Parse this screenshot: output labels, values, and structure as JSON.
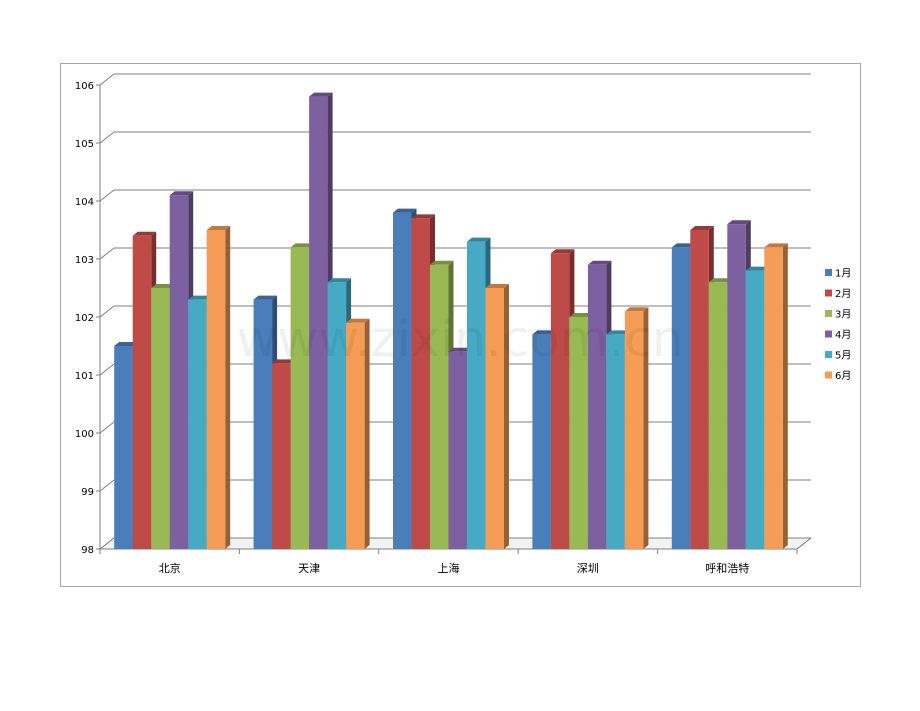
{
  "watermark": "www.zixin.com.cn",
  "chart_data": {
    "type": "bar",
    "title": "",
    "xlabel": "",
    "ylabel": "",
    "ylim": [
      98,
      106
    ],
    "yticks": [
      98,
      99,
      100,
      101,
      102,
      103,
      104,
      105,
      106
    ],
    "grid": true,
    "legend_position": "right",
    "categories": [
      "北京",
      "天津",
      "上海",
      "深圳",
      "呼和浩特"
    ],
    "series": [
      {
        "name": "1月",
        "color": "#4a7ebb",
        "values": [
          101.5,
          102.3,
          103.8,
          101.7,
          103.2
        ]
      },
      {
        "name": "2月",
        "color": "#be4b48",
        "values": [
          103.4,
          101.2,
          103.7,
          103.1,
          103.5
        ]
      },
      {
        "name": "3月",
        "color": "#98b954",
        "values": [
          102.5,
          103.2,
          102.9,
          102.0,
          102.6
        ]
      },
      {
        "name": "4月",
        "color": "#7d60a0",
        "values": [
          104.1,
          105.8,
          101.4,
          102.9,
          103.6
        ]
      },
      {
        "name": "5月",
        "color": "#46aac5",
        "values": [
          102.3,
          102.6,
          103.3,
          101.7,
          102.8
        ]
      },
      {
        "name": "6月",
        "color": "#f59d56",
        "values": [
          103.5,
          101.9,
          102.5,
          102.1,
          103.2
        ]
      }
    ]
  }
}
